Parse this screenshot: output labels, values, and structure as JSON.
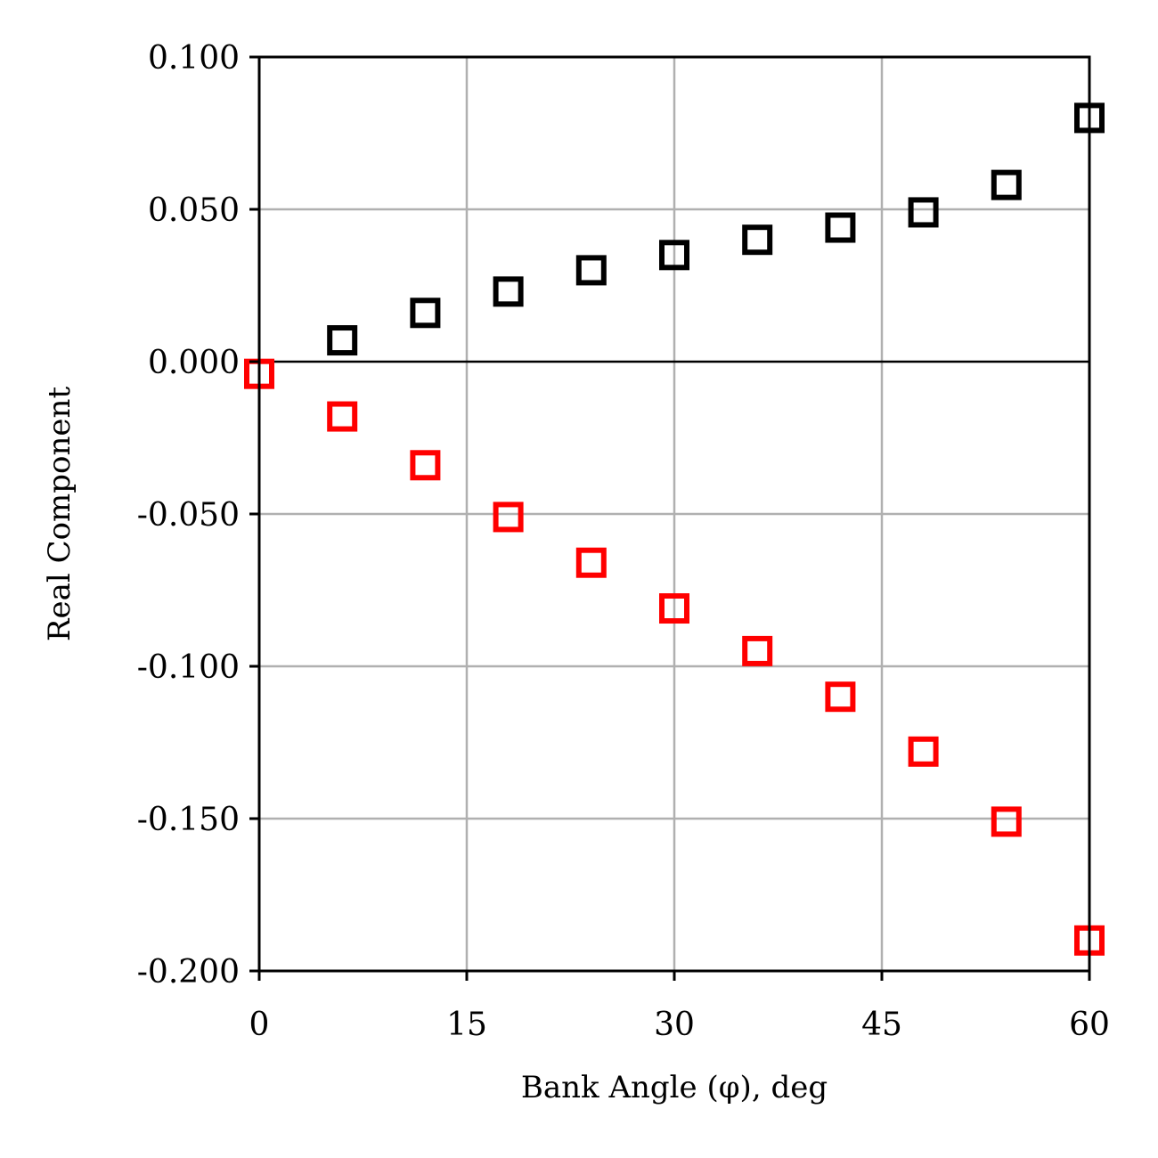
{
  "chart_data": {
    "type": "scatter",
    "xlabel": "Bank Angle (φ), deg",
    "ylabel": "Real Component",
    "xlim": [
      0,
      60
    ],
    "ylim": [
      -0.2,
      0.1
    ],
    "xticks": [
      0,
      15,
      30,
      45,
      60
    ],
    "xtick_labels": [
      "0",
      "15",
      "30",
      "45",
      "60"
    ],
    "yticks": [
      -0.2,
      -0.15,
      -0.1,
      -0.05,
      0.0,
      0.05,
      0.1
    ],
    "ytick_labels": [
      "-0.200",
      "-0.150",
      "-0.100",
      "-0.050",
      "0.000",
      "0.050",
      "0.100"
    ],
    "grid": true,
    "zero_line": true,
    "marker": "hollow-square",
    "x": [
      0,
      6,
      12,
      18,
      24,
      30,
      36,
      42,
      48,
      54,
      60
    ],
    "series": [
      {
        "color": "#000000",
        "x": [
          6,
          12,
          18,
          24,
          30,
          36,
          42,
          48,
          54,
          60
        ],
        "values": [
          0.007,
          0.016,
          0.023,
          0.03,
          0.035,
          0.04,
          0.044,
          0.049,
          0.058,
          0.08
        ]
      },
      {
        "color": "#ff0000",
        "x": [
          0,
          6,
          12,
          18,
          24,
          30,
          36,
          42,
          48,
          54,
          60
        ],
        "values": [
          -0.004,
          -0.018,
          -0.034,
          -0.051,
          -0.066,
          -0.081,
          -0.095,
          -0.11,
          -0.128,
          -0.151,
          -0.19
        ]
      }
    ]
  }
}
